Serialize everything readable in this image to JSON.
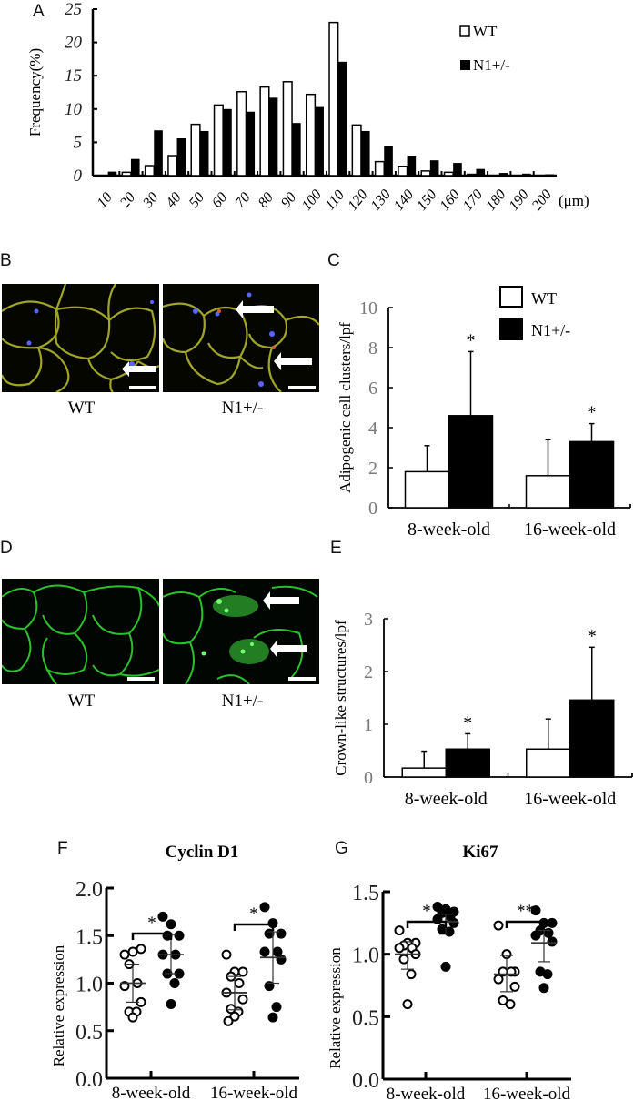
{
  "panels": {
    "A": {
      "letter": "A"
    },
    "B": {
      "letter": "B",
      "captions": [
        "WT",
        "N1+/-"
      ]
    },
    "C": {
      "letter": "C"
    },
    "D": {
      "letter": "D",
      "captions": [
        "WT",
        "N1+/-"
      ]
    },
    "E": {
      "letter": "E"
    },
    "F": {
      "letter": "F"
    },
    "G": {
      "letter": "G"
    }
  },
  "colors": {
    "wt_fill": "#ffffff",
    "n1_fill": "#000000",
    "tick_label_grey": "#7a7a7a",
    "stain_B_membrane": "#b5b82a",
    "stain_B_nuclei": "#5a6cff",
    "stain_D_membrane": "#2fd62f"
  },
  "chart_data": [
    {
      "id": "A",
      "type": "bar",
      "title": "",
      "xlabel": "(μm)",
      "ylabel": "Frequency(%)",
      "ylim": [
        0,
        25
      ],
      "yticks": [
        0,
        5,
        10,
        15,
        20,
        25
      ],
      "grid": false,
      "legend_position": "top-right",
      "categories": [
        "10",
        "20",
        "30",
        "40",
        "50",
        "60",
        "70",
        "80",
        "90",
        "100",
        "110",
        "120",
        "130",
        "140",
        "150",
        "160",
        "170",
        "180",
        "190",
        "200"
      ],
      "series": [
        {
          "name": "WT",
          "values": [
            0,
            0.5,
            1.5,
            3.0,
            7.7,
            10.6,
            12.6,
            13.3,
            14.1,
            12.2,
            23.0,
            7.6,
            2.1,
            1.4,
            0.7,
            0.5,
            0.2,
            0,
            0,
            0
          ]
        },
        {
          "name": "N1+/-",
          "values": [
            0.6,
            2.5,
            6.8,
            5.6,
            6.7,
            10.0,
            9.6,
            11.7,
            7.9,
            10.3,
            17.1,
            6.7,
            4.5,
            3.0,
            2.3,
            1.9,
            1.0,
            0.4,
            0.3,
            0.2
          ]
        }
      ]
    },
    {
      "id": "C",
      "type": "bar",
      "title": "",
      "xlabel": "",
      "ylabel": "Adipogenic cell clusters/lpf",
      "ylim": [
        0,
        10
      ],
      "yticks": [
        0,
        2,
        4,
        6,
        8,
        10
      ],
      "grid": false,
      "legend_position": "top-right",
      "categories": [
        "8-week-old",
        "16-week-old"
      ],
      "series": [
        {
          "name": "WT",
          "values": [
            1.8,
            1.6
          ],
          "error": [
            1.3,
            1.8
          ]
        },
        {
          "name": "N1+/-",
          "values": [
            4.6,
            3.3
          ],
          "error": [
            3.2,
            0.9
          ]
        }
      ],
      "annotations": [
        {
          "group": "8-week-old",
          "series": "N1+/-",
          "text": "*"
        },
        {
          "group": "16-week-old",
          "series": "N1+/-",
          "text": "*"
        }
      ]
    },
    {
      "id": "E",
      "type": "bar",
      "title": "",
      "xlabel": "",
      "ylabel": "Crown-like structures/lpf",
      "ylim": [
        0,
        3
      ],
      "yticks": [
        0,
        1,
        2,
        3
      ],
      "grid": false,
      "categories": [
        "8-week-old",
        "16-week-old"
      ],
      "series": [
        {
          "name": "WT",
          "values": [
            0.17,
            0.53
          ],
          "error": [
            0.32,
            0.57
          ]
        },
        {
          "name": "N1+/-",
          "values": [
            0.53,
            1.46
          ],
          "error": [
            0.29,
            1.0
          ]
        }
      ],
      "annotations": [
        {
          "group": "8-week-old",
          "series": "N1+/-",
          "text": "*"
        },
        {
          "group": "16-week-old",
          "series": "N1+/-",
          "text": "*"
        }
      ]
    },
    {
      "id": "F",
      "type": "scatter",
      "title": "Cyclin D1",
      "xlabel": "",
      "ylabel": "Relative expression",
      "ylim": [
        0,
        2.0
      ],
      "yticks": [
        "0.0",
        "0.5",
        "1.0",
        "1.5",
        "2.0"
      ],
      "grid": false,
      "categories": [
        "8-week-old",
        "16-week-old"
      ],
      "series": [
        {
          "name": "WT 8-week-old",
          "marker": "open",
          "points": [
            1.3,
            1.33,
            1.36,
            1.2,
            1.0,
            0.97,
            0.8,
            0.7,
            0.7,
            0.64
          ],
          "mean": 1.0,
          "sd": [
            0.8,
            1.2
          ]
        },
        {
          "name": "N1+/- 8-week-old",
          "marker": "filled",
          "points": [
            1.7,
            1.62,
            1.5,
            1.5,
            1.3,
            1.3,
            1.1,
            1.1,
            1.0,
            0.78
          ],
          "mean": 1.3,
          "sd": [
            1.1,
            1.51
          ]
        },
        {
          "name": "WT 16-week-old",
          "marker": "open",
          "points": [
            1.3,
            1.12,
            1.12,
            1.07,
            1.0,
            0.9,
            0.83,
            0.73,
            0.7,
            0.65,
            0.6
          ],
          "mean": 0.9,
          "sd": [
            0.72,
            1.07
          ]
        },
        {
          "name": "N1+/- 16-week-old",
          "marker": "filled",
          "points": [
            1.8,
            1.63,
            1.52,
            1.52,
            1.33,
            1.33,
            1.25,
            0.97,
            0.75,
            0.64
          ],
          "mean": 1.27,
          "sd": [
            1.0,
            1.54
          ]
        }
      ],
      "annotations": [
        {
          "group": "8-week-old",
          "text": "*"
        },
        {
          "group": "16-week-old",
          "text": "*"
        }
      ]
    },
    {
      "id": "G",
      "type": "scatter",
      "title": "Ki67",
      "xlabel": "",
      "ylabel": "Relative expression",
      "ylim": [
        0,
        1.5
      ],
      "yticks": [
        "0.0",
        "0.5",
        "1.0",
        "1.5"
      ],
      "grid": false,
      "categories": [
        "8-week-old",
        "16-week-old"
      ],
      "series": [
        {
          "name": "WT 8-week-old",
          "marker": "open",
          "points": [
            1.19,
            1.09,
            1.09,
            1.07,
            1.05,
            1.05,
            1.0,
            0.96,
            0.84,
            0.6
          ],
          "mean": 1.0,
          "sd": [
            0.88,
            1.1
          ]
        },
        {
          "name": "N1+/- 8-week-old",
          "marker": "filled",
          "points": [
            1.38,
            1.36,
            1.34,
            1.33,
            1.3,
            1.28,
            1.25,
            1.2,
            1.18,
            0.9
          ],
          "mean": 1.26,
          "sd": [
            1.16,
            1.32
          ]
        },
        {
          "name": "WT 16-week-old",
          "marker": "open",
          "points": [
            1.23,
            1.0,
            0.86,
            0.86,
            0.86,
            0.8,
            0.74,
            0.63,
            0.6
          ],
          "mean": 0.84,
          "sd": [
            0.7,
            0.99
          ]
        },
        {
          "name": "N1+/- 16-week-old",
          "marker": "filled",
          "points": [
            1.35,
            1.25,
            1.25,
            1.19,
            1.17,
            1.15,
            1.1,
            0.86,
            0.84,
            0.73
          ],
          "mean": 1.09,
          "sd": [
            0.94,
            1.19
          ]
        }
      ],
      "annotations": [
        {
          "group": "8-week-old",
          "text": "*"
        },
        {
          "group": "16-week-old",
          "text": "**"
        }
      ]
    }
  ]
}
